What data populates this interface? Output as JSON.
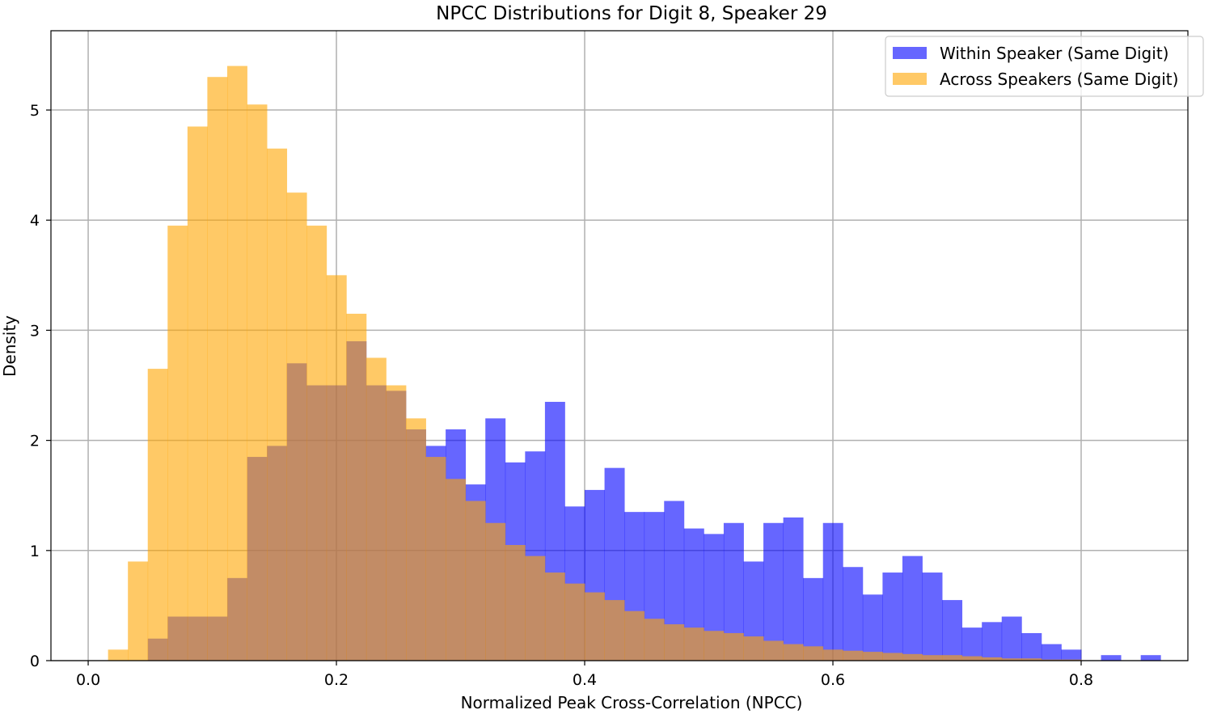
{
  "chart_data": {
    "type": "bar",
    "subtype": "histogram",
    "title": "NPCC Distributions for Digit 8, Speaker 29",
    "xlabel": "Normalized Peak Cross-Correlation (NPCC)",
    "ylabel": "Density",
    "xlim": [
      -0.03,
      0.886
    ],
    "ylim": [
      0,
      5.72
    ],
    "xticks": [
      0.0,
      0.2,
      0.4,
      0.6,
      0.8
    ],
    "xtick_labels": [
      "0.0",
      "0.2",
      "0.4",
      "0.6",
      "0.8"
    ],
    "yticks": [
      0,
      1,
      2,
      3,
      4,
      5
    ],
    "ytick_labels": [
      "0",
      "1",
      "2",
      "3",
      "4",
      "5"
    ],
    "grid": true,
    "legend_position": "top-right",
    "series": [
      {
        "name": "Within Speaker (Same Digit)",
        "color": "#0000ff",
        "alpha": 0.6,
        "bins": [
          [
            0.048,
            0.064,
            0.2
          ],
          [
            0.064,
            0.08,
            0.4
          ],
          [
            0.08,
            0.096,
            0.4
          ],
          [
            0.096,
            0.112,
            0.4
          ],
          [
            0.112,
            0.128,
            0.75
          ],
          [
            0.128,
            0.144,
            1.85
          ],
          [
            0.144,
            0.16,
            1.95
          ],
          [
            0.16,
            0.176,
            2.7
          ],
          [
            0.176,
            0.192,
            2.5
          ],
          [
            0.192,
            0.208,
            2.5
          ],
          [
            0.208,
            0.224,
            2.9
          ],
          [
            0.224,
            0.24,
            2.5
          ],
          [
            0.24,
            0.256,
            2.45
          ],
          [
            0.256,
            0.272,
            2.1
          ],
          [
            0.272,
            0.288,
            1.95
          ],
          [
            0.288,
            0.304,
            2.1
          ],
          [
            0.304,
            0.32,
            1.6
          ],
          [
            0.32,
            0.336,
            2.2
          ],
          [
            0.336,
            0.352,
            1.8
          ],
          [
            0.352,
            0.368,
            1.9
          ],
          [
            0.368,
            0.384,
            2.35
          ],
          [
            0.384,
            0.4,
            1.4
          ],
          [
            0.4,
            0.416,
            1.55
          ],
          [
            0.416,
            0.432,
            1.75
          ],
          [
            0.432,
            0.448,
            1.35
          ],
          [
            0.448,
            0.464,
            1.35
          ],
          [
            0.464,
            0.48,
            1.45
          ],
          [
            0.48,
            0.496,
            1.2
          ],
          [
            0.496,
            0.512,
            1.15
          ],
          [
            0.512,
            0.528,
            1.25
          ],
          [
            0.528,
            0.544,
            0.9
          ],
          [
            0.544,
            0.56,
            1.25
          ],
          [
            0.56,
            0.576,
            1.3
          ],
          [
            0.576,
            0.592,
            0.75
          ],
          [
            0.592,
            0.608,
            1.25
          ],
          [
            0.608,
            0.624,
            0.85
          ],
          [
            0.624,
            0.64,
            0.6
          ],
          [
            0.64,
            0.656,
            0.8
          ],
          [
            0.656,
            0.672,
            0.95
          ],
          [
            0.672,
            0.688,
            0.8
          ],
          [
            0.688,
            0.704,
            0.55
          ],
          [
            0.704,
            0.72,
            0.3
          ],
          [
            0.72,
            0.736,
            0.35
          ],
          [
            0.736,
            0.752,
            0.4
          ],
          [
            0.752,
            0.768,
            0.25
          ],
          [
            0.768,
            0.784,
            0.15
          ],
          [
            0.784,
            0.8,
            0.1
          ],
          [
            0.8,
            0.816,
            0.0
          ],
          [
            0.816,
            0.832,
            0.05
          ],
          [
            0.832,
            0.848,
            0.0
          ],
          [
            0.848,
            0.864,
            0.05
          ]
        ]
      },
      {
        "name": "Across Speakers (Same Digit)",
        "color": "#ffa500",
        "alpha": 0.6,
        "bins": [
          [
            0.016,
            0.032,
            0.1
          ],
          [
            0.032,
            0.048,
            0.9
          ],
          [
            0.048,
            0.064,
            2.65
          ],
          [
            0.064,
            0.08,
            3.95
          ],
          [
            0.08,
            0.096,
            4.85
          ],
          [
            0.096,
            0.112,
            5.3
          ],
          [
            0.112,
            0.128,
            5.4
          ],
          [
            0.128,
            0.144,
            5.05
          ],
          [
            0.144,
            0.16,
            4.65
          ],
          [
            0.16,
            0.176,
            4.25
          ],
          [
            0.176,
            0.192,
            3.95
          ],
          [
            0.192,
            0.208,
            3.5
          ],
          [
            0.208,
            0.224,
            3.15
          ],
          [
            0.224,
            0.24,
            2.75
          ],
          [
            0.24,
            0.256,
            2.5
          ],
          [
            0.256,
            0.272,
            2.2
          ],
          [
            0.272,
            0.288,
            1.85
          ],
          [
            0.288,
            0.304,
            1.65
          ],
          [
            0.304,
            0.32,
            1.45
          ],
          [
            0.32,
            0.336,
            1.25
          ],
          [
            0.336,
            0.352,
            1.05
          ],
          [
            0.352,
            0.368,
            0.95
          ],
          [
            0.368,
            0.384,
            0.8
          ],
          [
            0.384,
            0.4,
            0.7
          ],
          [
            0.4,
            0.416,
            0.62
          ],
          [
            0.416,
            0.432,
            0.55
          ],
          [
            0.432,
            0.448,
            0.45
          ],
          [
            0.448,
            0.464,
            0.38
          ],
          [
            0.464,
            0.48,
            0.33
          ],
          [
            0.48,
            0.496,
            0.3
          ],
          [
            0.496,
            0.512,
            0.27
          ],
          [
            0.512,
            0.528,
            0.25
          ],
          [
            0.528,
            0.544,
            0.22
          ],
          [
            0.544,
            0.56,
            0.18
          ],
          [
            0.56,
            0.576,
            0.15
          ],
          [
            0.576,
            0.592,
            0.13
          ],
          [
            0.592,
            0.608,
            0.1
          ],
          [
            0.608,
            0.624,
            0.09
          ],
          [
            0.624,
            0.64,
            0.08
          ],
          [
            0.64,
            0.656,
            0.07
          ],
          [
            0.656,
            0.672,
            0.06
          ],
          [
            0.672,
            0.688,
            0.05
          ],
          [
            0.688,
            0.704,
            0.05
          ],
          [
            0.704,
            0.72,
            0.04
          ],
          [
            0.72,
            0.736,
            0.03
          ],
          [
            0.736,
            0.752,
            0.02
          ],
          [
            0.752,
            0.768,
            0.02
          ],
          [
            0.768,
            0.784,
            0.01
          ],
          [
            0.784,
            0.8,
            0.01
          ]
        ]
      }
    ]
  }
}
